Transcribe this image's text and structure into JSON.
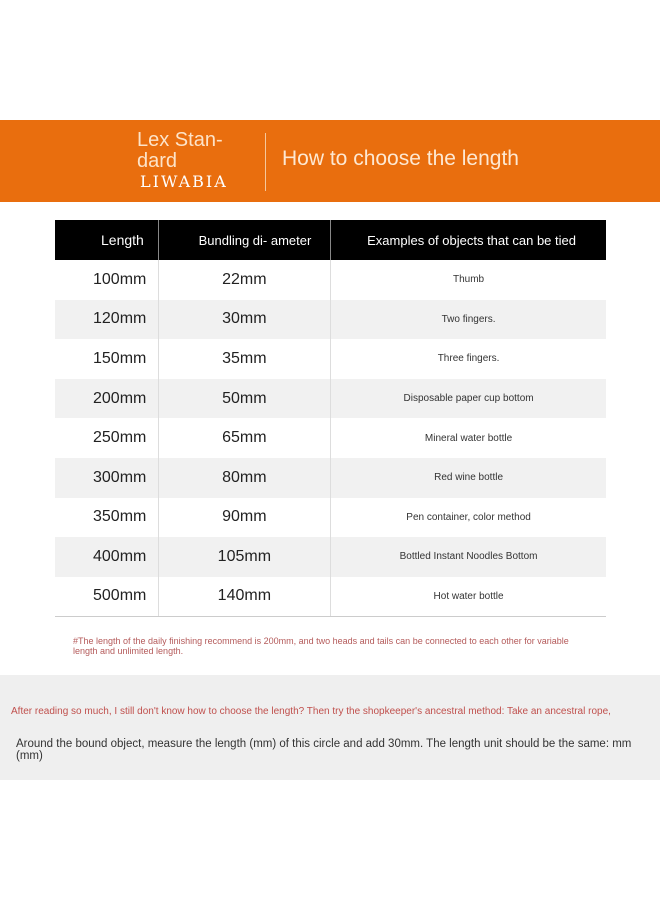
{
  "banner": {
    "brand_line1": "Lex Stan-",
    "brand_line2": "dard",
    "logo": "LIWABIA",
    "title": "How to choose the length",
    "color": "#e96e0e"
  },
  "table": {
    "headers": [
      "Length",
      "Bundling di- ameter",
      "Examples of objects that can be tied"
    ],
    "rows": [
      [
        "100mm",
        "22mm",
        "Thumb"
      ],
      [
        "120mm",
        "30mm",
        "Two fingers."
      ],
      [
        "150mm",
        "35mm",
        "Three fingers."
      ],
      [
        "200mm",
        "50mm",
        "Disposable paper cup bottom"
      ],
      [
        "250mm",
        "65mm",
        "Mineral water bottle"
      ],
      [
        "300mm",
        "80mm",
        "Red wine bottle"
      ],
      [
        "350mm",
        "90mm",
        "Pen container, color method"
      ],
      [
        "400mm",
        "105mm",
        "Bottled Instant Noodles Bottom"
      ],
      [
        "500mm",
        "140mm",
        "Hot water bottle"
      ]
    ]
  },
  "note": "#The length of the daily finishing recommend is 200mm, and two heads and tails can be connected to each other for variable length and unlimited length.",
  "tip": {
    "line1": "After reading so much, I still don't know how to choose the length? Then try the shopkeeper's ancestral method: Take an ancestral rope,",
    "line2": "Around the bound object, measure the length (mm) of this circle and add 30mm. The length unit should be the same: mm (mm)"
  }
}
